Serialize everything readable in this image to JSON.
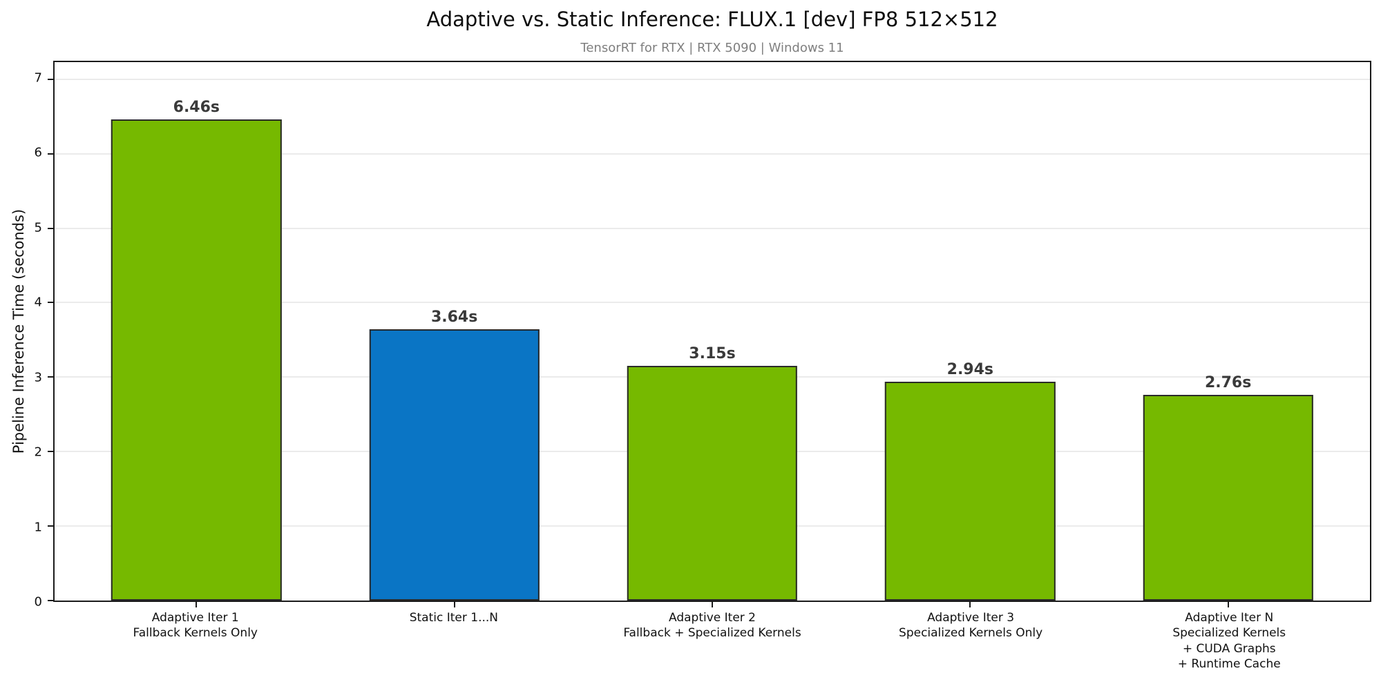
{
  "chart_data": {
    "type": "bar",
    "title": "Adaptive vs. Static Inference: FLUX.1 [dev] FP8 512×512",
    "subtitle": "TensorRT for RTX | RTX 5090 | Windows 11",
    "xlabel": "",
    "ylabel": "Pipeline Inference Time (seconds)",
    "ylim": [
      0,
      7.23
    ],
    "xlim": [
      -0.55,
      4.55
    ],
    "yticks": [
      0,
      1,
      2,
      3,
      4,
      5,
      6,
      7
    ],
    "grid": "horizontal",
    "legend_position": "none",
    "bar_width": 0.66,
    "categories": [
      [
        "Adaptive Iter 1",
        "Fallback Kernels Only"
      ],
      [
        "Static Iter 1...N"
      ],
      [
        "Adaptive Iter 2",
        "Fallback + Specialized Kernels"
      ],
      [
        "Adaptive Iter 3",
        "Specialized Kernels Only"
      ],
      [
        "Adaptive Iter N",
        "Specialized Kernels",
        "+ CUDA Graphs",
        "+ Runtime Cache"
      ]
    ],
    "values": [
      6.46,
      3.64,
      3.15,
      2.94,
      2.76
    ],
    "value_labels": [
      "6.46s",
      "3.64s",
      "3.15s",
      "2.94s",
      "2.76s"
    ],
    "bar_colors": [
      "#76b900",
      "#0a75c5",
      "#76b900",
      "#76b900",
      "#76b900"
    ],
    "colors": {
      "adaptive_green": "#76b900",
      "static_blue": "#0a75c5",
      "bar_edge": "#2a2a2a",
      "gridline": "#ebebeb",
      "spine": "#1a1a1a",
      "subtitle_gray": "#7f7f7f",
      "value_label": "#3a3a3a"
    }
  }
}
